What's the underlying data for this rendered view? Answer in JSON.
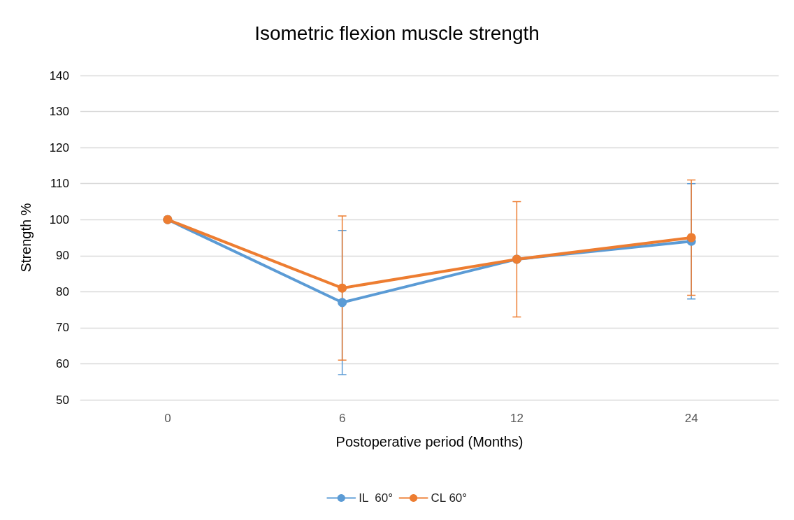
{
  "chart_data": {
    "type": "line",
    "title": "Isometric flexion muscle strength",
    "xlabel": "Postoperative period (Months)",
    "ylabel": "Strength %",
    "categories": [
      "0",
      "6",
      "12",
      "24"
    ],
    "series": [
      {
        "name": "IL  60°",
        "color": "#5b9bd5",
        "values": [
          100,
          77,
          89,
          94
        ],
        "errors": [
          null,
          20,
          null,
          16
        ]
      },
      {
        "name": "CL 60°",
        "color": "#ed7d31",
        "values": [
          100,
          81,
          89,
          95
        ],
        "errors": [
          null,
          20,
          16,
          16
        ]
      }
    ],
    "ylim": [
      50,
      140
    ],
    "yticks": [
      50,
      60,
      70,
      80,
      90,
      100,
      110,
      120,
      130,
      140
    ],
    "grid": "y",
    "legend": "bottom",
    "marker": "circle",
    "line_style": "solid"
  }
}
